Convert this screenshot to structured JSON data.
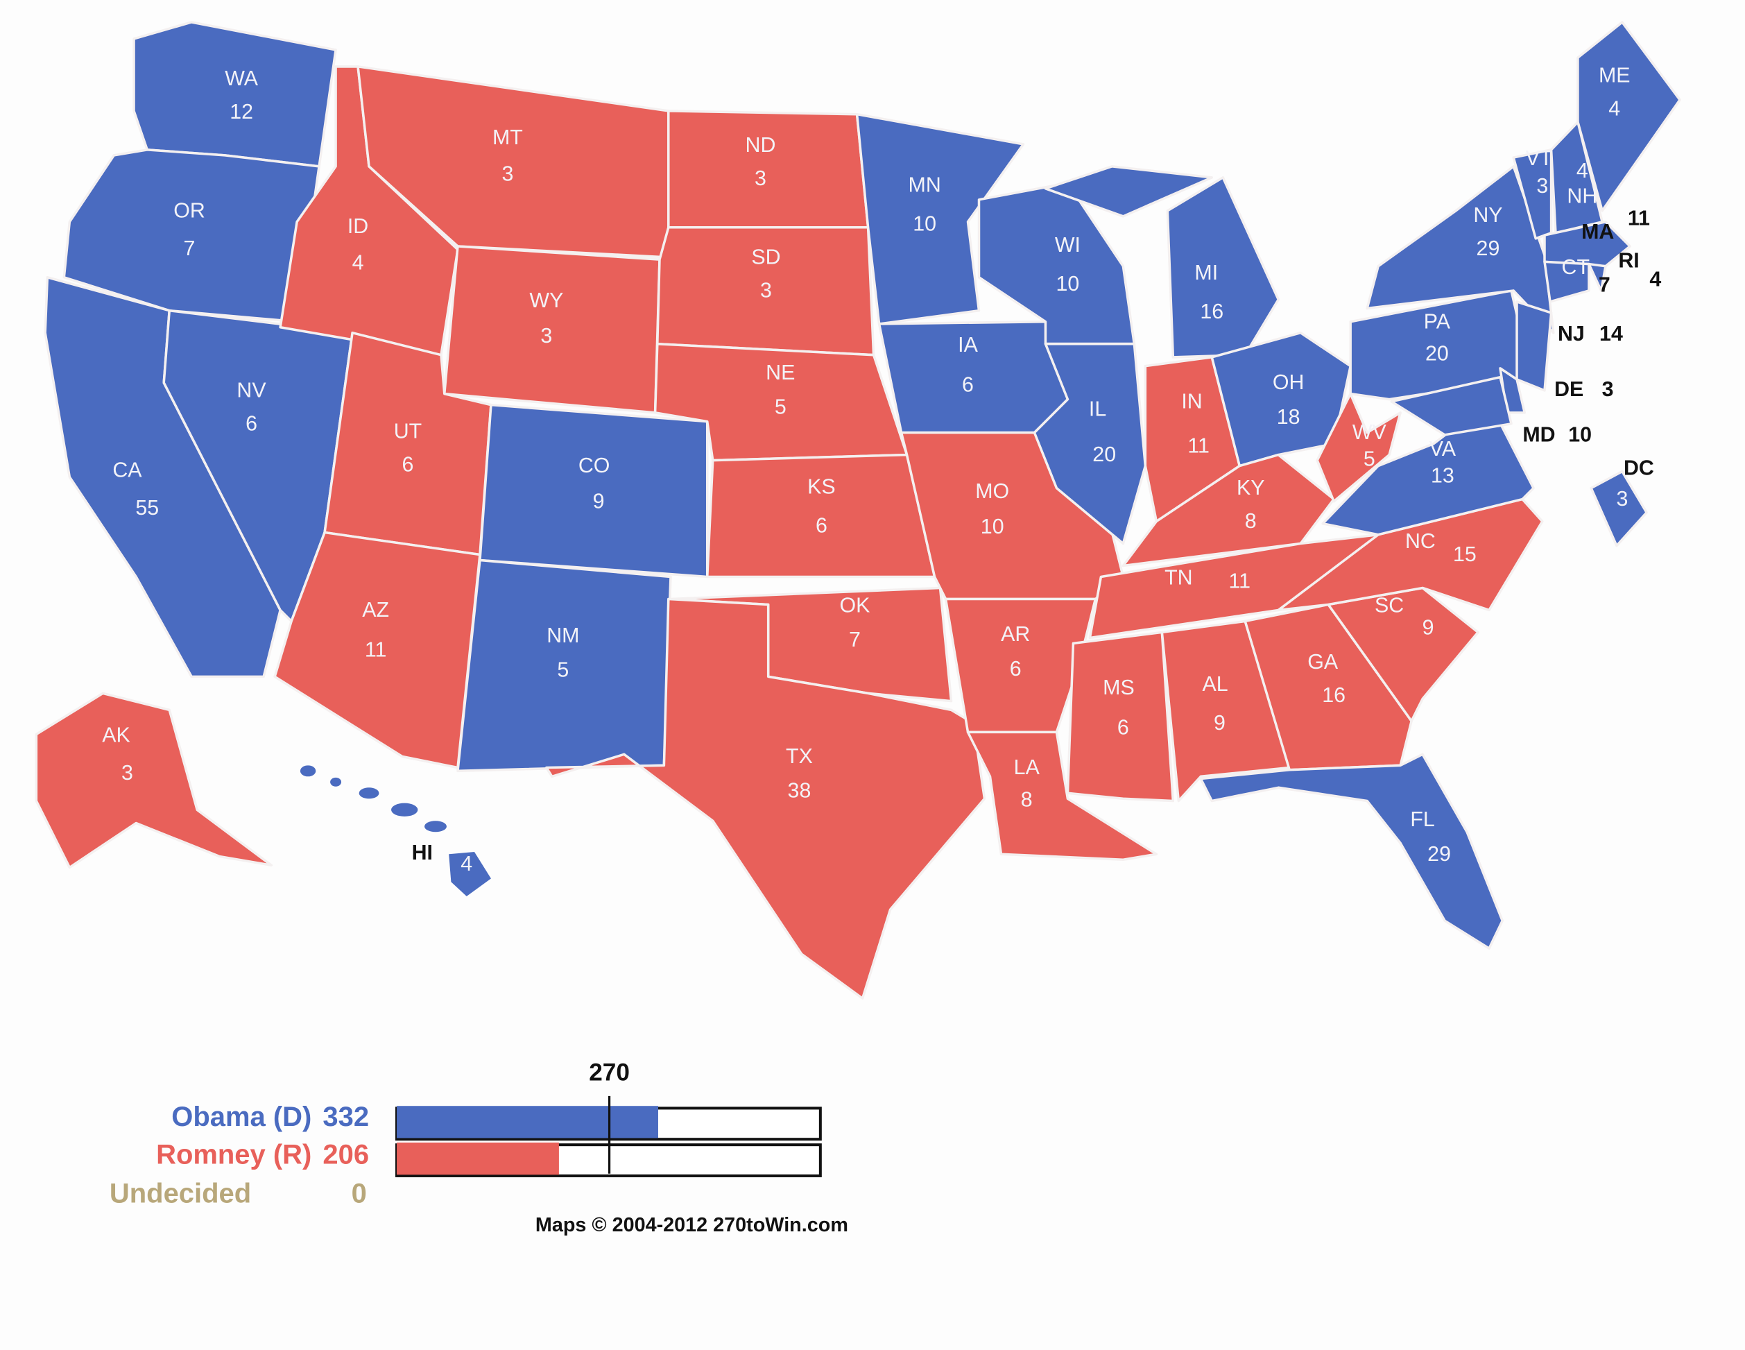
{
  "colors": {
    "democrat": "#4a6bc0",
    "republican": "#e8605a",
    "undecided": "#b8a77a"
  },
  "states": [
    {
      "abbr": "WA",
      "votes": "12",
      "winner": "D"
    },
    {
      "abbr": "OR",
      "votes": "7",
      "winner": "D"
    },
    {
      "abbr": "CA",
      "votes": "55",
      "winner": "D"
    },
    {
      "abbr": "NV",
      "votes": "6",
      "winner": "D"
    },
    {
      "abbr": "ID",
      "votes": "4",
      "winner": "R"
    },
    {
      "abbr": "MT",
      "votes": "3",
      "winner": "R"
    },
    {
      "abbr": "WY",
      "votes": "3",
      "winner": "R"
    },
    {
      "abbr": "UT",
      "votes": "6",
      "winner": "R"
    },
    {
      "abbr": "CO",
      "votes": "9",
      "winner": "D"
    },
    {
      "abbr": "AZ",
      "votes": "11",
      "winner": "R"
    },
    {
      "abbr": "NM",
      "votes": "5",
      "winner": "D"
    },
    {
      "abbr": "ND",
      "votes": "3",
      "winner": "R"
    },
    {
      "abbr": "SD",
      "votes": "3",
      "winner": "R"
    },
    {
      "abbr": "NE",
      "votes": "5",
      "winner": "R"
    },
    {
      "abbr": "KS",
      "votes": "6",
      "winner": "R"
    },
    {
      "abbr": "OK",
      "votes": "7",
      "winner": "R"
    },
    {
      "abbr": "TX",
      "votes": "38",
      "winner": "R"
    },
    {
      "abbr": "MN",
      "votes": "10",
      "winner": "D"
    },
    {
      "abbr": "IA",
      "votes": "6",
      "winner": "D"
    },
    {
      "abbr": "MO",
      "votes": "10",
      "winner": "R"
    },
    {
      "abbr": "AR",
      "votes": "6",
      "winner": "R"
    },
    {
      "abbr": "LA",
      "votes": "8",
      "winner": "R"
    },
    {
      "abbr": "WI",
      "votes": "10",
      "winner": "D"
    },
    {
      "abbr": "IL",
      "votes": "20",
      "winner": "D"
    },
    {
      "abbr": "MI",
      "votes": "16",
      "winner": "D"
    },
    {
      "abbr": "IN",
      "votes": "11",
      "winner": "R"
    },
    {
      "abbr": "OH",
      "votes": "18",
      "winner": "D"
    },
    {
      "abbr": "KY",
      "votes": "8",
      "winner": "R"
    },
    {
      "abbr": "TN",
      "votes": "11",
      "winner": "R"
    },
    {
      "abbr": "MS",
      "votes": "6",
      "winner": "R"
    },
    {
      "abbr": "AL",
      "votes": "9",
      "winner": "R"
    },
    {
      "abbr": "GA",
      "votes": "16",
      "winner": "R"
    },
    {
      "abbr": "FL",
      "votes": "29",
      "winner": "D"
    },
    {
      "abbr": "SC",
      "votes": "9",
      "winner": "R"
    },
    {
      "abbr": "NC",
      "votes": "15",
      "winner": "R"
    },
    {
      "abbr": "VA",
      "votes": "13",
      "winner": "D"
    },
    {
      "abbr": "WV",
      "votes": "5",
      "winner": "R"
    },
    {
      "abbr": "PA",
      "votes": "20",
      "winner": "D"
    },
    {
      "abbr": "NY",
      "votes": "29",
      "winner": "D"
    },
    {
      "abbr": "ME",
      "votes": "4",
      "winner": "D"
    },
    {
      "abbr": "VT",
      "votes": "3",
      "winner": "D"
    },
    {
      "abbr": "NH",
      "votes": "4",
      "winner": "D"
    },
    {
      "abbr": "MA",
      "votes": "11",
      "winner": "D"
    },
    {
      "abbr": "CT",
      "votes": "7",
      "winner": "D"
    },
    {
      "abbr": "RI",
      "votes": "4",
      "winner": "D"
    },
    {
      "abbr": "NJ",
      "votes": "14",
      "winner": "D"
    },
    {
      "abbr": "DE",
      "votes": "3",
      "winner": "D"
    },
    {
      "abbr": "MD",
      "votes": "10",
      "winner": "D"
    },
    {
      "abbr": "DC",
      "votes": "3",
      "winner": "D"
    },
    {
      "abbr": "AK",
      "votes": "3",
      "winner": "R"
    },
    {
      "abbr": "HI",
      "votes": "4",
      "winner": "D"
    }
  ],
  "legend": {
    "threshold": "270",
    "total": 538,
    "candidates": [
      {
        "label": "Obama (D)",
        "votes": "332",
        "value": 332,
        "party": "D"
      },
      {
        "label": "Romney (R)",
        "votes": "206",
        "value": 206,
        "party": "R"
      },
      {
        "label": "Undecided",
        "votes": "0",
        "value": 0,
        "party": "U"
      }
    ]
  },
  "credit": "Maps © 2004-2012 270toWin.com"
}
